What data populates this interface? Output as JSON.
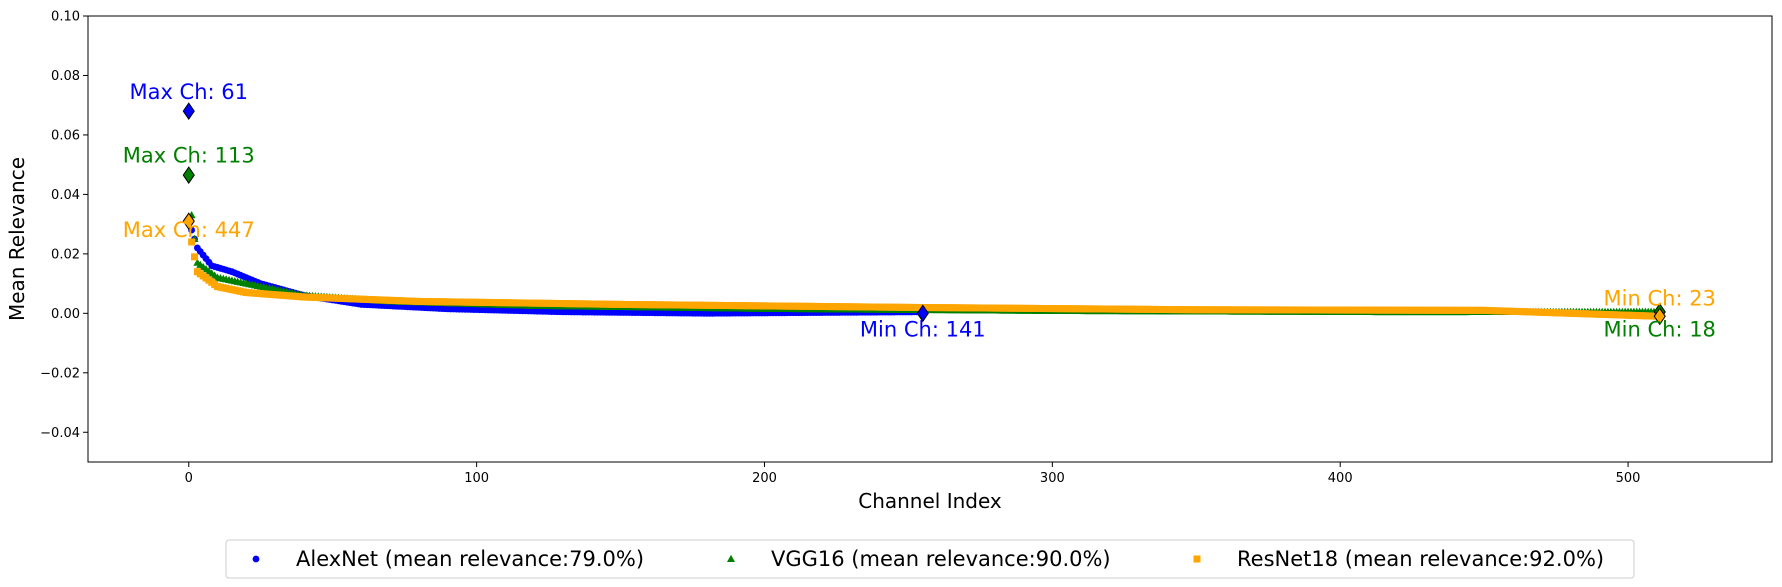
{
  "chart_data": {
    "type": "scatter",
    "xlabel": "Channel Index",
    "ylabel": "Mean Relevance",
    "xlim": [
      -35,
      550
    ],
    "ylim": [
      -0.05,
      0.1
    ],
    "xticks": [
      0,
      100,
      200,
      300,
      400,
      500
    ],
    "yticks": [
      -0.04,
      -0.02,
      0.0,
      0.02,
      0.04,
      0.06,
      0.08,
      0.1
    ],
    "ytick_labels": [
      "−0.04",
      "−0.02",
      "0.00",
      "0.02",
      "0.04",
      "0.06",
      "0.08",
      "0.10"
    ],
    "grid": false,
    "legend_position": "bottom-center",
    "series": [
      {
        "name": "AlexNet (mean relevance:79.0%)",
        "marker": "circle",
        "color": "#0000ff",
        "n": 256,
        "knots": [
          [
            0,
            0.068
          ],
          [
            1,
            0.028
          ],
          [
            3,
            0.022
          ],
          [
            8,
            0.016
          ],
          [
            15,
            0.014
          ],
          [
            25,
            0.01
          ],
          [
            40,
            0.006
          ],
          [
            60,
            0.003
          ],
          [
            90,
            0.0015
          ],
          [
            130,
            0.0005
          ],
          [
            180,
            0.0
          ],
          [
            255,
            0.0005
          ]
        ]
      },
      {
        "name": "VGG16 (mean relevance:90.0%)",
        "marker": "triangle",
        "color": "#008000",
        "n": 512,
        "knots": [
          [
            0,
            0.0465
          ],
          [
            1,
            0.033
          ],
          [
            3,
            0.017
          ],
          [
            10,
            0.012
          ],
          [
            25,
            0.009
          ],
          [
            40,
            0.006
          ],
          [
            70,
            0.004
          ],
          [
            120,
            0.0025
          ],
          [
            200,
            0.0015
          ],
          [
            300,
            0.0008
          ],
          [
            420,
            0.0004
          ],
          [
            511,
            0.0005
          ]
        ]
      },
      {
        "name": "ResNet18 (mean relevance:92.0%)",
        "marker": "square",
        "color": "#ffa500",
        "n": 512,
        "knots": [
          [
            0,
            0.031
          ],
          [
            1,
            0.024
          ],
          [
            3,
            0.014
          ],
          [
            10,
            0.009
          ],
          [
            20,
            0.007
          ],
          [
            40,
            0.0055
          ],
          [
            80,
            0.004
          ],
          [
            150,
            0.003
          ],
          [
            250,
            0.002
          ],
          [
            350,
            0.0012
          ],
          [
            450,
            0.001
          ],
          [
            511,
            -0.001
          ]
        ]
      }
    ],
    "extremes": [
      {
        "x": 0,
        "y": 0.068,
        "color": "#0000ff"
      },
      {
        "x": 0,
        "y": 0.0465,
        "color": "#008000"
      },
      {
        "x": 0,
        "y": 0.031,
        "color": "#ffa500"
      },
      {
        "x": 255,
        "y": 0.0,
        "color": "#0000ff"
      },
      {
        "x": 511,
        "y": 0.0005,
        "color": "#008000"
      },
      {
        "x": 511,
        "y": -0.001,
        "color": "#ffa500"
      }
    ],
    "annotations": [
      {
        "text": "Max Ch: 61",
        "x": 0,
        "y": 0.0745,
        "color": "#0000ff"
      },
      {
        "text": "Max Ch: 113",
        "x": 0,
        "y": 0.053,
        "color": "#008000"
      },
      {
        "text": "Max Ch: 447",
        "x": 0,
        "y": 0.028,
        "color": "#ffa500"
      },
      {
        "text": "Min Ch: 141",
        "x": 255,
        "y": -0.0055,
        "color": "#0000ff"
      },
      {
        "text": "Min Ch: 23",
        "x": 511,
        "y": 0.005,
        "color": "#ffa500"
      },
      {
        "text": "Min Ch: 18",
        "x": 511,
        "y": -0.0055,
        "color": "#008000"
      }
    ]
  }
}
